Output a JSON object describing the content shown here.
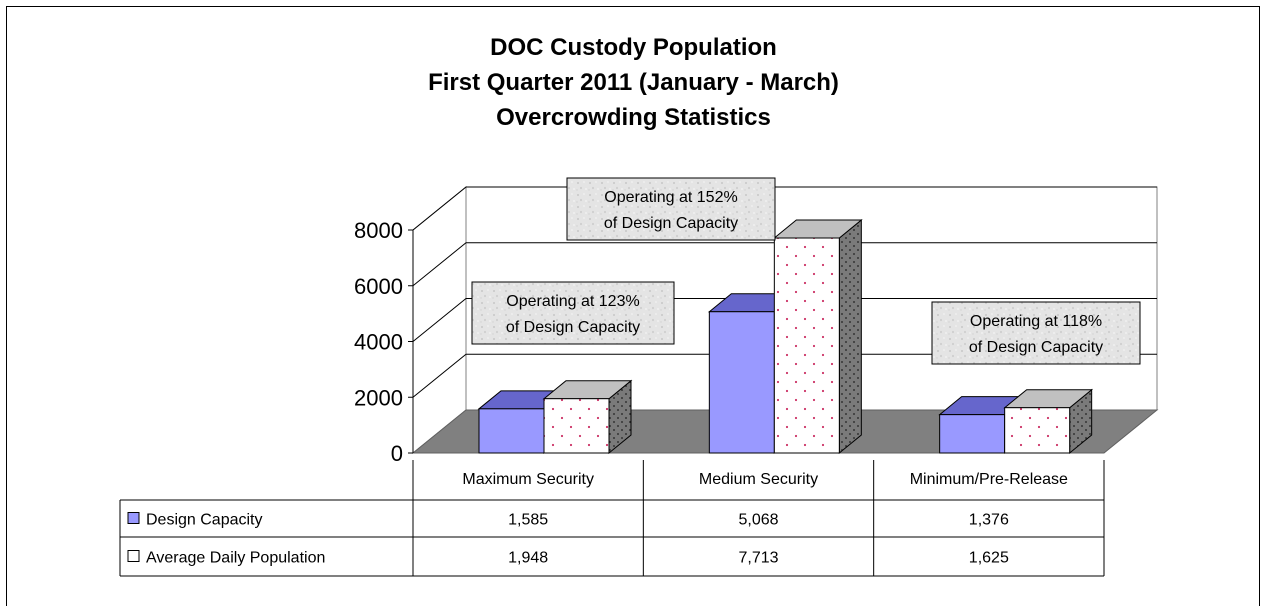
{
  "chart_data": {
    "type": "bar",
    "title_lines": [
      "DOC Custody Population",
      "First Quarter 2011 (January - March)",
      "Overcrowding Statistics"
    ],
    "categories": [
      "Maximum Security",
      "Medium Security",
      "Minimum/Pre-Release"
    ],
    "series": [
      {
        "name": "Design Capacity",
        "values": [
          1585,
          5068,
          1376
        ],
        "labels": [
          "1,585",
          "5,068",
          "1,376"
        ]
      },
      {
        "name": "Average Daily Population",
        "values": [
          1948,
          7713,
          1625
        ],
        "labels": [
          "1,948",
          "7,713",
          "1,625"
        ]
      }
    ],
    "ylim": [
      0,
      8000
    ],
    "yticks": [
      0,
      2000,
      4000,
      6000,
      8000
    ],
    "grid": true,
    "legend": "data-table",
    "annotations": [
      {
        "category": "Maximum Security",
        "lines": [
          "Operating at 123%",
          "of Design Capacity"
        ]
      },
      {
        "category": "Medium Security",
        "lines": [
          "Operating at 152%",
          "of Design Capacity"
        ]
      },
      {
        "category": "Minimum/Pre-Release",
        "lines": [
          "Operating at 118%",
          "of Design Capacity"
        ]
      }
    ],
    "colors": {
      "design": "#9999ff",
      "design_top": "#6666cc",
      "design_side": "#3f3fa0",
      "adp": "#ffffff",
      "adp_top": "#c0c0c0",
      "adp_side": "#808080",
      "floor": "#808080",
      "dots": "#cc3366"
    }
  }
}
